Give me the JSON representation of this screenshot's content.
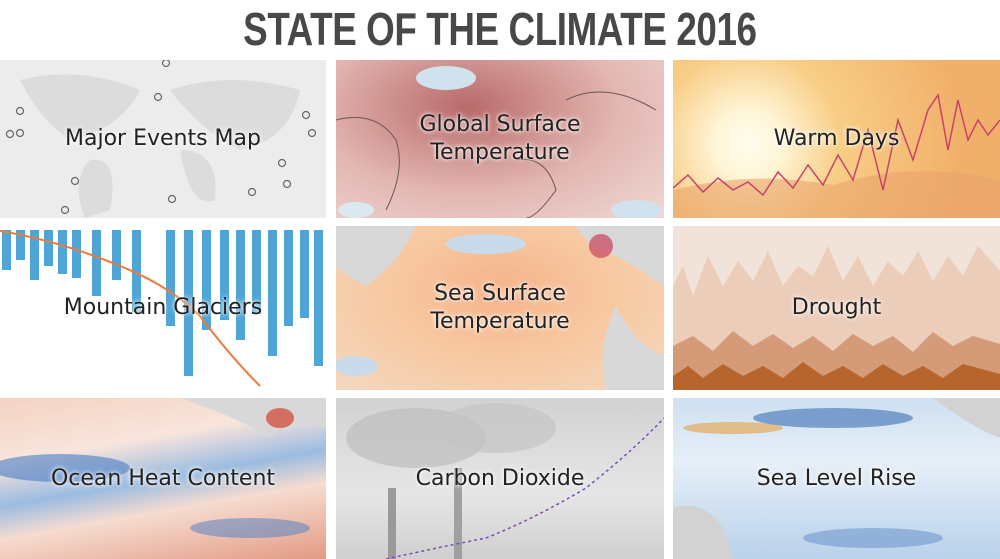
{
  "header": {
    "title": "STATE OF THE CLIMATE 2016"
  },
  "tiles": [
    {
      "label": "Major Events Map"
    },
    {
      "label": "Global Surface Temperature"
    },
    {
      "label": "Warm Days"
    },
    {
      "label": "Mountain Glaciers"
    },
    {
      "label": "Sea Surface Temperature"
    },
    {
      "label": "Drought"
    },
    {
      "label": "Ocean Heat Content"
    },
    {
      "label": "Carbon Dioxide"
    },
    {
      "label": "Sea Level Rise"
    }
  ]
}
